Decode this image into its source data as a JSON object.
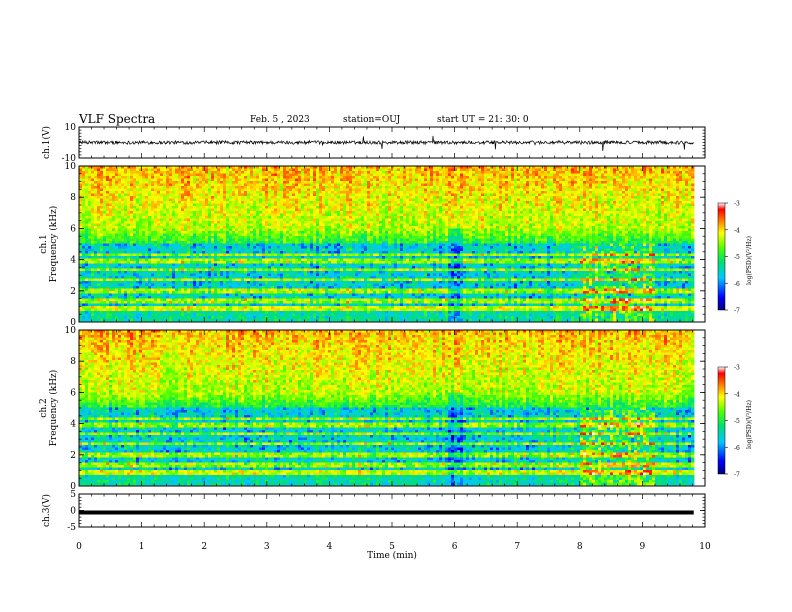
{
  "header": {
    "title": "VLF Spectra",
    "date": "Feb. 5  , 2023",
    "station": "station=OUJ",
    "start_ut": "start  UT  =   21: 30: 0"
  },
  "chart_data": [
    {
      "type": "line",
      "panel": "ch1-waveform",
      "ylabel": "ch.1(V)",
      "ylim": [
        -10,
        10
      ],
      "yticks": [
        10,
        -10
      ],
      "xlim": [
        0,
        10
      ],
      "baseline": 0,
      "color": "#000000"
    },
    {
      "type": "heatmap",
      "panel": "ch1-spectrogram",
      "ylabel_line1": "ch.1",
      "ylabel_line2": "Frequency  (kHz)",
      "ylim": [
        0,
        10
      ],
      "yticks": [
        0,
        2,
        4,
        6,
        8,
        10
      ],
      "xlim": [
        0,
        9.82
      ],
      "colorbar": {
        "label": "log(PSD)(V²/Hz)",
        "range": [
          -7,
          -3
        ],
        "ticks": [
          -3,
          -4,
          -5,
          -6,
          -7
        ]
      }
    },
    {
      "type": "heatmap",
      "panel": "ch2-spectrogram",
      "ylabel_line1": "ch.2",
      "ylabel_line2": "Frequency  (kHz)",
      "ylim": [
        0,
        10
      ],
      "yticks": [
        0,
        2,
        4,
        6,
        8,
        10
      ],
      "xlim": [
        0,
        9.82
      ],
      "colorbar": {
        "label": "log(PSD)(V²/Hz)",
        "range": [
          -7,
          -3
        ],
        "ticks": [
          -3,
          -4,
          -5,
          -6,
          -7
        ]
      }
    },
    {
      "type": "line",
      "panel": "ch3-waveform",
      "ylabel": "ch.3(V)",
      "ylim": [
        -5,
        5
      ],
      "yticks": [
        5,
        0,
        -5
      ],
      "xlim": [
        0,
        10
      ],
      "constant_value": -0.6,
      "color": "#000000"
    }
  ],
  "xaxis": {
    "label": "Time  (min)",
    "ticks": [
      0,
      1,
      2,
      3,
      4,
      5,
      6,
      7,
      8,
      9,
      10
    ],
    "range": [
      0,
      10
    ]
  }
}
